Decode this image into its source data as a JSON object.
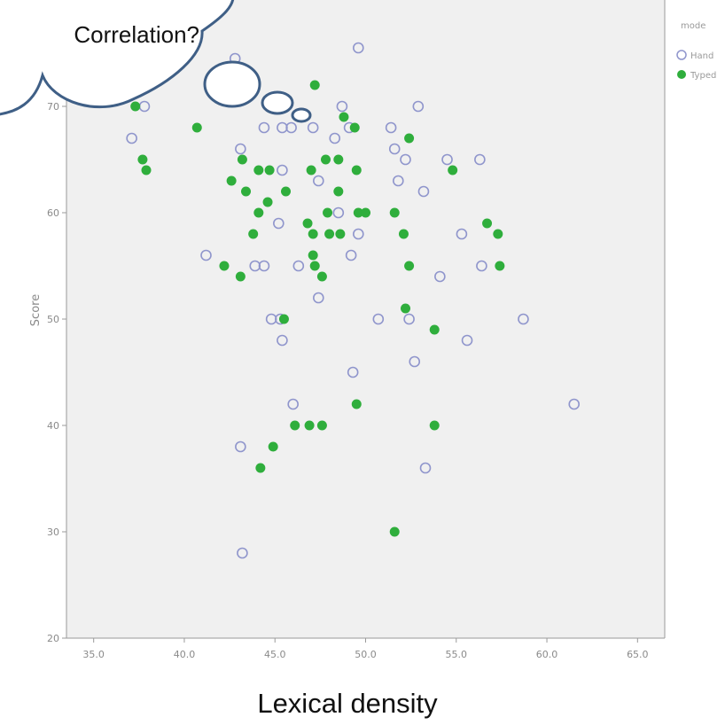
{
  "chart_data": {
    "type": "scatter",
    "xlabel": "Lexical density",
    "ylabel": "Score",
    "xlim": [
      33.5,
      66.5
    ],
    "ylim": [
      20,
      80
    ],
    "x_ticks": [
      "35.0",
      "40.0",
      "45.0",
      "50.0",
      "55.0",
      "60.0",
      "65.0"
    ],
    "y_ticks": [
      "20",
      "30",
      "40",
      "50",
      "60",
      "70"
    ],
    "legend": {
      "title": "mode",
      "placement": "top-right",
      "entries": [
        "Hand",
        "Typed"
      ]
    },
    "colors": {
      "hand": "#8f95cc",
      "typed": "#2fae3c",
      "plot_bg": "#f0f0f0",
      "frame": "#9a9a9a",
      "bubble_stroke": "#3f5f86"
    },
    "series": [
      {
        "name": "Hand",
        "marker": "hollow-circle",
        "points": [
          [
            42.8,
            74.5
          ],
          [
            49.6,
            75.5
          ],
          [
            37.8,
            70.0
          ],
          [
            52.9,
            70.0
          ],
          [
            42.6,
            72.0
          ],
          [
            37.1,
            67.0
          ],
          [
            43.1,
            66.0
          ],
          [
            44.4,
            68.0
          ],
          [
            45.4,
            68.0
          ],
          [
            45.9,
            68.0
          ],
          [
            47.1,
            68.0
          ],
          [
            48.7,
            70.0
          ],
          [
            49.1,
            68.0
          ],
          [
            48.3,
            67.0
          ],
          [
            51.4,
            68.0
          ],
          [
            51.6,
            66.0
          ],
          [
            52.2,
            65.0
          ],
          [
            54.5,
            65.0
          ],
          [
            56.3,
            65.0
          ],
          [
            45.4,
            64.0
          ],
          [
            47.4,
            63.0
          ],
          [
            51.8,
            63.0
          ],
          [
            53.2,
            62.0
          ],
          [
            45.2,
            59.0
          ],
          [
            48.5,
            60.0
          ],
          [
            49.6,
            58.0
          ],
          [
            55.3,
            58.0
          ],
          [
            41.2,
            56.0
          ],
          [
            49.2,
            56.0
          ],
          [
            43.9,
            55.0
          ],
          [
            44.4,
            55.0
          ],
          [
            46.3,
            55.0
          ],
          [
            56.4,
            55.0
          ],
          [
            54.1,
            54.0
          ],
          [
            47.4,
            52.0
          ],
          [
            44.8,
            50.0
          ],
          [
            45.3,
            50.0
          ],
          [
            50.7,
            50.0
          ],
          [
            52.4,
            50.0
          ],
          [
            58.7,
            50.0
          ],
          [
            45.4,
            48.0
          ],
          [
            55.6,
            48.0
          ],
          [
            52.7,
            46.0
          ],
          [
            49.3,
            45.0
          ],
          [
            46.0,
            42.0
          ],
          [
            61.5,
            42.0
          ],
          [
            43.1,
            38.0
          ],
          [
            53.3,
            36.0
          ],
          [
            43.2,
            28.0
          ]
        ]
      },
      {
        "name": "Typed",
        "marker": "filled-circle",
        "points": [
          [
            37.3,
            70.0
          ],
          [
            47.2,
            72.0
          ],
          [
            43.3,
            72.0
          ],
          [
            40.7,
            68.0
          ],
          [
            48.8,
            69.0
          ],
          [
            49.4,
            68.0
          ],
          [
            52.4,
            67.0
          ],
          [
            37.7,
            65.0
          ],
          [
            37.9,
            64.0
          ],
          [
            43.2,
            65.0
          ],
          [
            44.1,
            64.0
          ],
          [
            44.7,
            64.0
          ],
          [
            47.0,
            64.0
          ],
          [
            47.8,
            65.0
          ],
          [
            48.5,
            65.0
          ],
          [
            49.5,
            64.0
          ],
          [
            54.8,
            64.0
          ],
          [
            42.6,
            63.0
          ],
          [
            43.4,
            62.0
          ],
          [
            45.6,
            62.0
          ],
          [
            48.5,
            62.0
          ],
          [
            44.6,
            61.0
          ],
          [
            44.1,
            60.0
          ],
          [
            47.9,
            60.0
          ],
          [
            49.6,
            60.0
          ],
          [
            50.0,
            60.0
          ],
          [
            51.6,
            60.0
          ],
          [
            43.8,
            58.0
          ],
          [
            46.8,
            59.0
          ],
          [
            47.1,
            58.0
          ],
          [
            48.0,
            58.0
          ],
          [
            48.6,
            58.0
          ],
          [
            52.1,
            58.0
          ],
          [
            56.7,
            59.0
          ],
          [
            57.3,
            58.0
          ],
          [
            47.1,
            56.0
          ],
          [
            47.2,
            55.0
          ],
          [
            42.2,
            55.0
          ],
          [
            43.1,
            54.0
          ],
          [
            47.6,
            54.0
          ],
          [
            52.4,
            55.0
          ],
          [
            57.4,
            55.0
          ],
          [
            52.2,
            51.0
          ],
          [
            45.5,
            50.0
          ],
          [
            53.8,
            49.0
          ],
          [
            49.5,
            42.0
          ],
          [
            46.1,
            40.0
          ],
          [
            46.9,
            40.0
          ],
          [
            47.6,
            40.0
          ],
          [
            53.8,
            40.0
          ],
          [
            44.9,
            38.0
          ],
          [
            44.2,
            36.0
          ],
          [
            51.6,
            30.0
          ]
        ]
      }
    ]
  },
  "thought_bubble": {
    "text": "Correlation?"
  }
}
